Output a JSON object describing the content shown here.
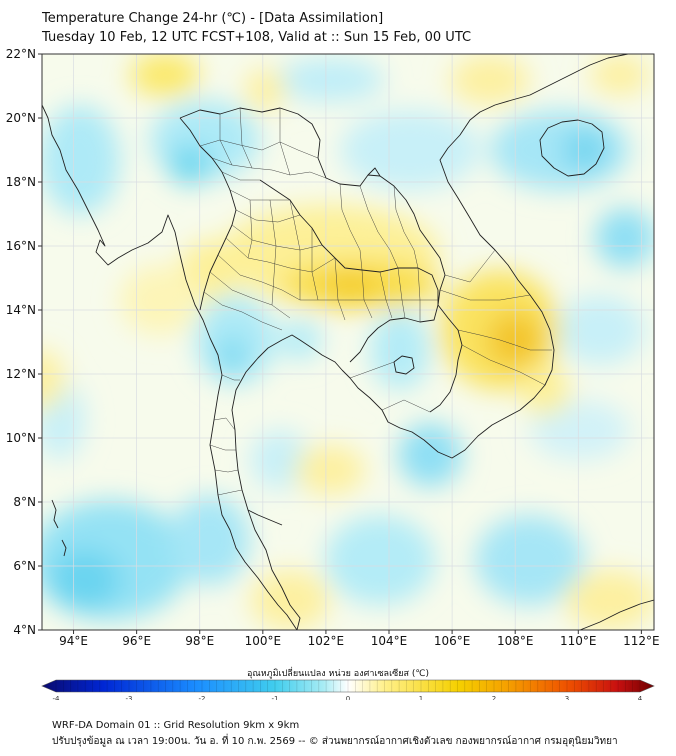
{
  "header": {
    "title_line1": "Temperature Change 24-hr (℃) - [Data Assimilation]",
    "title_line2": "Tuesday 10 Feb, 12 UTC FCST+108, Valid at :: Sun 15 Feb, 00 UTC"
  },
  "map": {
    "lat_ticks": [
      "22°N",
      "20°N",
      "18°N",
      "16°N",
      "14°N",
      "12°N",
      "10°N",
      "8°N",
      "6°N",
      "4°N"
    ],
    "lon_ticks": [
      "94°E",
      "96°E",
      "98°E",
      "100°E",
      "102°E",
      "104°E",
      "106°E",
      "108°E",
      "110°E",
      "112°E"
    ],
    "lat_range": [
      4,
      22
    ],
    "lon_range": [
      93,
      112.4
    ]
  },
  "colorbar": {
    "title": "อุณหภูมิเปลี่ยนแปลง หน่วย องศาเซลเซียส (℃)",
    "min": -4,
    "max": 4,
    "tick_labels": [
      "-4",
      "-3",
      "-2",
      "-1",
      "0",
      "1",
      "2",
      "3",
      "4"
    ],
    "colors": [
      "#0a0a6e",
      "#0026d4",
      "#1a8cff",
      "#40cdee",
      "#a8ecf4",
      "#ffffff",
      "#fff08a",
      "#f5b800",
      "#ee6400",
      "#d42010",
      "#6e0000"
    ]
  },
  "footer": {
    "line1": "WRF-DA Domain 01 :: Grid Resolution 9km x 9km",
    "line2": "ปรับปรุงข้อมูล ณ เวลา 19:00น. วัน อ. ที่ 10 ก.พ. 2569 -- © ส่วนพยากรณ์อากาศเชิงตัวเลข กองพยากรณ์อากาศ กรมอุตุนิยมวิทยา"
  }
}
